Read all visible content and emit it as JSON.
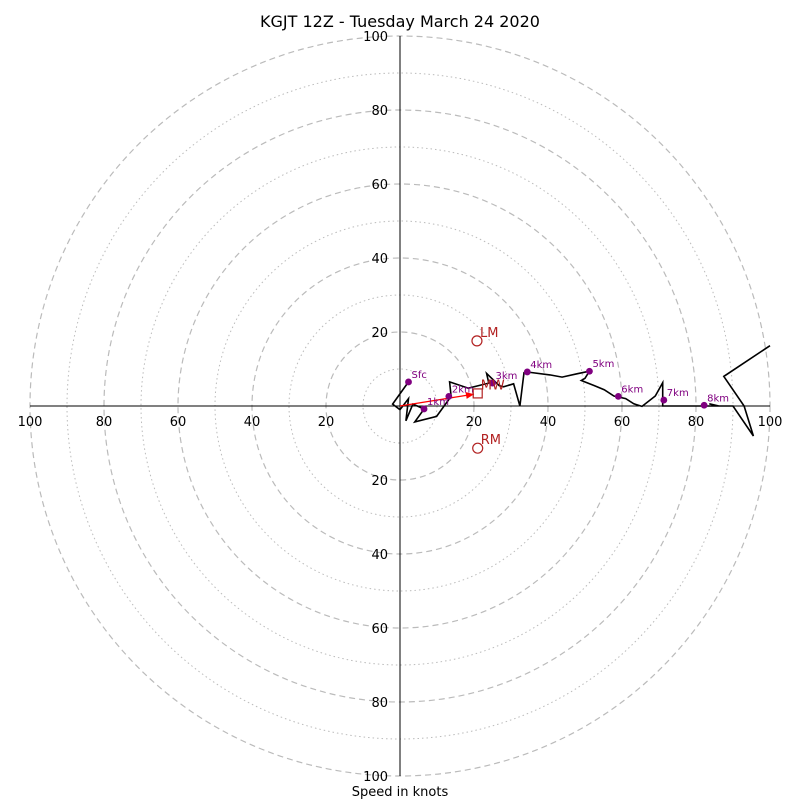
{
  "title": "KGJT 12Z - Tuesday March 24 2020",
  "xlabel": "Speed in knots",
  "colors": {
    "trace": "#000000",
    "height_markers": "#800080",
    "storm_motion": "#b22222",
    "mean_wind_vector": "#ff0000",
    "rings": "#bbbbbb"
  },
  "chart_data": {
    "type": "scatter",
    "subtype": "hodograph",
    "units": "knots",
    "ring_max": 100,
    "major_rings": [
      20,
      40,
      60,
      80,
      100
    ],
    "minor_rings": [
      10,
      30,
      50,
      70,
      90
    ],
    "axis_tick_labels": {
      "x_left": [
        "100",
        "80",
        "60",
        "40",
        "20"
      ],
      "x_right": [
        "20",
        "40",
        "60",
        "80",
        "100"
      ],
      "y_top": [
        "100",
        "80",
        "60",
        "40",
        "20"
      ],
      "y_bottom": [
        "20",
        "40",
        "60",
        "80",
        "100"
      ]
    },
    "trace": [
      [
        2.3,
        6.5
      ],
      [
        -2,
        0.5
      ],
      [
        0,
        -1
      ],
      [
        0.3,
        -0.6
      ],
      [
        2.3,
        2
      ],
      [
        1.6,
        -4
      ],
      [
        3.5,
        0.5
      ],
      [
        6.5,
        -0.8
      ],
      [
        4,
        -4.3
      ],
      [
        9.9,
        -2.8
      ],
      [
        13.8,
        2.6
      ],
      [
        13.4,
        6.5
      ],
      [
        18.5,
        4.8
      ],
      [
        24,
        6.2
      ],
      [
        23.4,
        8.8
      ],
      [
        26.8,
        5.5
      ],
      [
        28,
        5.2
      ],
      [
        30.7,
        6
      ],
      [
        32.4,
        0
      ],
      [
        33.5,
        9
      ],
      [
        34.4,
        9.2
      ],
      [
        40.5,
        8.4
      ],
      [
        43.8,
        7.8
      ],
      [
        47.8,
        8.7
      ],
      [
        51.2,
        9.4
      ],
      [
        50,
        7.5
      ],
      [
        49,
        6.9
      ],
      [
        52.5,
        5.5
      ],
      [
        55.2,
        4.4
      ],
      [
        57.8,
        2.7
      ],
      [
        61,
        2
      ],
      [
        63.2,
        0.6
      ],
      [
        65.4,
        -0.1
      ],
      [
        69,
        2.7
      ],
      [
        71,
        6.3
      ],
      [
        71,
        0
      ],
      [
        75.5,
        0
      ],
      [
        86.2,
        0
      ],
      [
        83.6,
        0.6
      ],
      [
        86,
        0
      ],
      [
        90,
        0
      ],
      [
        95.5,
        -8.1
      ],
      [
        93,
        0
      ],
      [
        87.5,
        8
      ],
      [
        100,
        16.3
      ]
    ],
    "height_markers": [
      {
        "label": "Sfc",
        "u": 2.3,
        "v": 6.5
      },
      {
        "label": "1km",
        "u": 6.5,
        "v": -0.8
      },
      {
        "label": "2km",
        "u": 13.2,
        "v": 2.6
      },
      {
        "label": "3km",
        "u": 25,
        "v": 6.2
      },
      {
        "label": "4km",
        "u": 34.4,
        "v": 9.2
      },
      {
        "label": "5km",
        "u": 51.2,
        "v": 9.4
      },
      {
        "label": "6km",
        "u": 59,
        "v": 2.6
      },
      {
        "label": "7km",
        "u": 71.3,
        "v": 1.6
      },
      {
        "label": "8km",
        "u": 82.2,
        "v": 0.2
      }
    ],
    "storm_motion": [
      {
        "label": "LM",
        "u": 20.8,
        "v": 17.6,
        "marker": "circle"
      },
      {
        "label": "RM",
        "u": 21,
        "v": -11.4,
        "marker": "circle"
      },
      {
        "label": "MW",
        "u": 21,
        "v": 3.4,
        "marker": "square"
      }
    ],
    "mean_wind_vector": {
      "from": [
        0,
        0
      ],
      "to": [
        20,
        3.2
      ]
    }
  }
}
